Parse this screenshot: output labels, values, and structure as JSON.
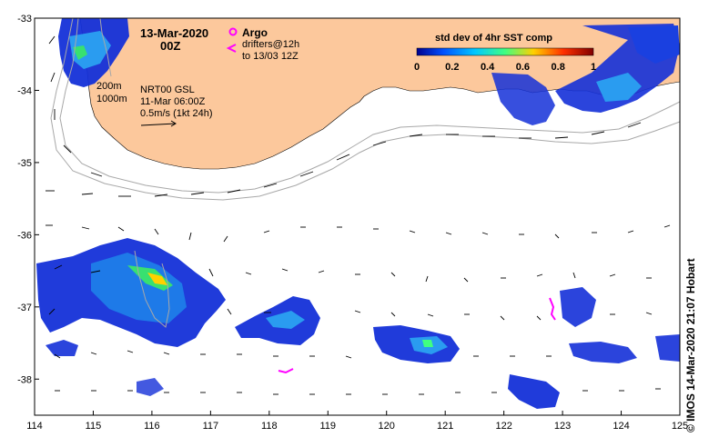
{
  "map": {
    "date": "13-Mar-2020",
    "time": "00Z",
    "argo_label": "Argo",
    "drifter_label_1": "drifters@12h",
    "drifter_label_2": "to 13/03 12Z",
    "contour_label_1": "200m",
    "contour_label_2": "1000m",
    "product": "NRT00 GSL",
    "product_time": "11-Mar 06:00Z",
    "scale_label": "0.5m/s (1kt 24h)",
    "credit": "© IMOS 14-Mar-2020 21:07 Hobart",
    "colorbar": {
      "title": "std dev of 4hr SST comp",
      "ticks": [
        "0",
        "0.2",
        "0.4",
        "0.6",
        "0.8",
        "1"
      ],
      "colors": [
        "#00008f",
        "#0050ff",
        "#00c8ff",
        "#40ff80",
        "#ffd000",
        "#ff3000",
        "#800000"
      ]
    },
    "axes": {
      "x_ticks": [
        "114",
        "115",
        "116",
        "117",
        "118",
        "119",
        "120",
        "121",
        "122",
        "123",
        "124",
        "125"
      ],
      "y_ticks": [
        "-33",
        "-34",
        "-35",
        "-36",
        "-37",
        "-38"
      ],
      "lon_range": [
        114,
        125
      ],
      "lat_range": [
        -38.5,
        -33
      ]
    },
    "colors": {
      "land": "#fcc89c",
      "argo": "#ff00ff",
      "drifter": "#ff00ff",
      "contour": "#a8a8a8"
    }
  }
}
